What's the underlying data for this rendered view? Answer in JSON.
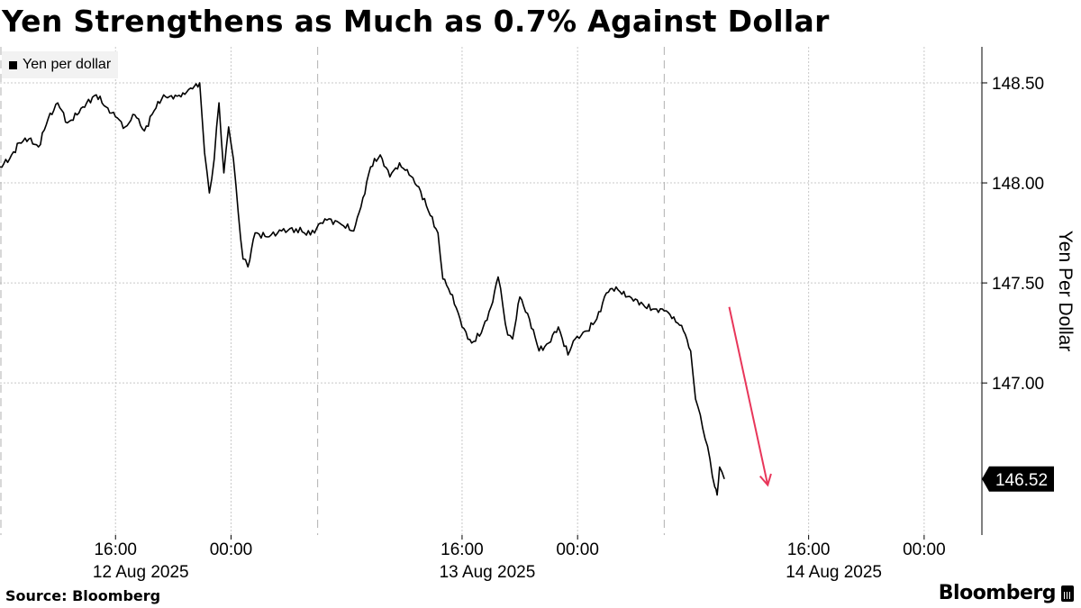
{
  "title": "Yen Strengthens as Much as 0.7% Against Dollar",
  "footer": {
    "source": "Source: Bloomberg",
    "brand": "Bloomberg",
    "brand_icon": "bloomberg-terminal-icon"
  },
  "chart_data": {
    "type": "line",
    "title": "Yen Strengthens as Much as 0.7% Against Dollar",
    "ylabel": "Yen Per Dollar",
    "ylim": [
      146.24,
      148.68
    ],
    "yticks": [
      148.5,
      148.0,
      147.5,
      147.0
    ],
    "ytick_labels": [
      "148.50",
      "148.00",
      "147.50",
      "147.00"
    ],
    "x_range": [
      "2025-08-12T08:00",
      "2025-08-15T04:00"
    ],
    "xticks": [
      {
        "at": "2025-08-12T16:00",
        "label": "16:00",
        "date_label": "12 Aug 2025"
      },
      {
        "at": "2025-08-13T00:00",
        "label": "00:00",
        "date_label": ""
      },
      {
        "at": "2025-08-13T16:00",
        "label": "16:00",
        "date_label": "13 Aug 2025"
      },
      {
        "at": "2025-08-14T00:00",
        "label": "00:00",
        "date_label": ""
      },
      {
        "at": "2025-08-14T16:00",
        "label": "16:00",
        "date_label": "14 Aug 2025"
      },
      {
        "at": "2025-08-15T00:00",
        "label": "00:00",
        "date_label": ""
      }
    ],
    "session_breaks": [
      "2025-08-13T06:00",
      "2025-08-14T06:00"
    ],
    "grid": true,
    "legend": "top-left",
    "series": [
      {
        "name": "Yen per dollar",
        "color": "#000000",
        "last_value": 146.52,
        "last_value_label": "146.52",
        "points": [
          [
            "2025-08-12T08:00",
            148.08
          ],
          [
            "2025-08-12T08:40",
            148.12
          ],
          [
            "2025-08-12T09:20",
            148.2
          ],
          [
            "2025-08-12T10:00",
            148.22
          ],
          [
            "2025-08-12T10:40",
            148.18
          ],
          [
            "2025-08-12T11:20",
            148.32
          ],
          [
            "2025-08-12T12:00",
            148.4
          ],
          [
            "2025-08-12T12:40",
            148.3
          ],
          [
            "2025-08-12T13:20",
            148.34
          ],
          [
            "2025-08-12T14:00",
            148.4
          ],
          [
            "2025-08-12T14:40",
            148.44
          ],
          [
            "2025-08-12T15:20",
            148.38
          ],
          [
            "2025-08-12T16:00",
            148.33
          ],
          [
            "2025-08-12T16:40",
            148.28
          ],
          [
            "2025-08-12T17:20",
            148.34
          ],
          [
            "2025-08-12T18:00",
            148.26
          ],
          [
            "2025-08-12T18:40",
            148.36
          ],
          [
            "2025-08-12T19:20",
            148.44
          ],
          [
            "2025-08-12T20:00",
            148.42
          ],
          [
            "2025-08-12T20:40",
            148.45
          ],
          [
            "2025-08-12T21:20",
            148.47
          ],
          [
            "2025-08-12T21:50",
            148.5
          ],
          [
            "2025-08-12T22:10",
            148.15
          ],
          [
            "2025-08-12T22:30",
            147.95
          ],
          [
            "2025-08-12T22:50",
            148.12
          ],
          [
            "2025-08-12T23:10",
            148.4
          ],
          [
            "2025-08-12T23:30",
            148.05
          ],
          [
            "2025-08-12T23:50",
            148.28
          ],
          [
            "2025-08-13T00:10",
            148.12
          ],
          [
            "2025-08-13T00:30",
            147.85
          ],
          [
            "2025-08-13T00:50",
            147.62
          ],
          [
            "2025-08-13T01:10",
            147.58
          ],
          [
            "2025-08-13T01:40",
            147.75
          ],
          [
            "2025-08-13T02:30",
            147.73
          ],
          [
            "2025-08-13T03:30",
            147.76
          ],
          [
            "2025-08-13T04:30",
            147.77
          ],
          [
            "2025-08-13T05:30",
            147.74
          ],
          [
            "2025-08-13T06:30",
            147.82
          ],
          [
            "2025-08-13T07:30",
            147.8
          ],
          [
            "2025-08-13T08:30",
            147.76
          ],
          [
            "2025-08-13T09:00",
            147.88
          ],
          [
            "2025-08-13T09:40",
            148.08
          ],
          [
            "2025-08-13T10:20",
            148.14
          ],
          [
            "2025-08-13T11:00",
            148.03
          ],
          [
            "2025-08-13T11:40",
            148.1
          ],
          [
            "2025-08-13T12:20",
            148.04
          ],
          [
            "2025-08-13T13:00",
            147.98
          ],
          [
            "2025-08-13T13:40",
            147.86
          ],
          [
            "2025-08-13T14:20",
            147.75
          ],
          [
            "2025-08-13T14:40",
            147.52
          ],
          [
            "2025-08-13T15:20",
            147.44
          ],
          [
            "2025-08-13T16:00",
            147.28
          ],
          [
            "2025-08-13T16:40",
            147.2
          ],
          [
            "2025-08-13T17:20",
            147.25
          ],
          [
            "2025-08-13T18:00",
            147.38
          ],
          [
            "2025-08-13T18:30",
            147.53
          ],
          [
            "2025-08-13T18:50",
            147.38
          ],
          [
            "2025-08-13T19:10",
            147.24
          ],
          [
            "2025-08-13T19:30",
            147.22
          ],
          [
            "2025-08-13T20:00",
            147.43
          ],
          [
            "2025-08-13T20:40",
            147.32
          ],
          [
            "2025-08-13T21:20",
            147.16
          ],
          [
            "2025-08-13T22:00",
            147.2
          ],
          [
            "2025-08-13T22:40",
            147.28
          ],
          [
            "2025-08-13T23:20",
            147.14
          ],
          [
            "2025-08-13T23:50",
            147.22
          ],
          [
            "2025-08-14T00:40",
            147.26
          ],
          [
            "2025-08-14T01:20",
            147.32
          ],
          [
            "2025-08-14T02:00",
            147.45
          ],
          [
            "2025-08-14T02:40",
            147.48
          ],
          [
            "2025-08-14T03:20",
            147.43
          ],
          [
            "2025-08-14T04:00",
            147.42
          ],
          [
            "2025-08-14T04:40",
            147.38
          ],
          [
            "2025-08-14T05:20",
            147.37
          ],
          [
            "2025-08-14T06:00",
            147.36
          ],
          [
            "2025-08-14T06:40",
            147.33
          ],
          [
            "2025-08-14T07:20",
            147.26
          ],
          [
            "2025-08-14T07:50",
            147.16
          ],
          [
            "2025-08-14T08:10",
            146.92
          ],
          [
            "2025-08-14T08:30",
            146.84
          ],
          [
            "2025-08-14T08:50",
            146.72
          ],
          [
            "2025-08-14T09:10",
            146.62
          ],
          [
            "2025-08-14T09:30",
            146.48
          ],
          [
            "2025-08-14T09:40",
            146.44
          ],
          [
            "2025-08-14T09:50",
            146.58
          ],
          [
            "2025-08-14T10:10",
            146.52
          ]
        ]
      }
    ],
    "annotations": [
      {
        "type": "arrow",
        "color": "#e8365a",
        "from": [
          "2025-08-14T10:30",
          147.38
        ],
        "to": [
          "2025-08-14T13:10",
          146.49
        ]
      }
    ]
  }
}
